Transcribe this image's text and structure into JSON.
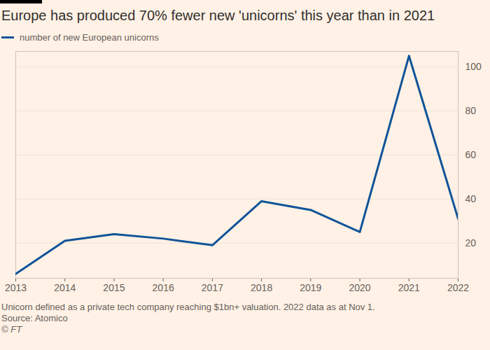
{
  "chart_data": {
    "type": "line",
    "title": "Europe has produced 70% fewer new 'unicorns' this year than in 2021",
    "x": [
      2013,
      2014,
      2015,
      2016,
      2017,
      2018,
      2019,
      2020,
      2021,
      2022
    ],
    "series": [
      {
        "name": "number of new European unicorns",
        "color": "#0f5499",
        "values": [
          6,
          21,
          24,
          22,
          19,
          39,
          35,
          25,
          105,
          31
        ]
      }
    ],
    "xlim": [
      2013,
      2022
    ],
    "xticks": [
      2013,
      2014,
      2015,
      2016,
      2017,
      2018,
      2019,
      2020,
      2021,
      2022
    ],
    "ylim": [
      4,
      107
    ],
    "yticks": [
      20,
      40,
      60,
      80,
      100
    ],
    "grid": true,
    "notes": [
      "Unicorn defined as a private tech company reaching $1bn+ valuation. 2022 data as at Nov 1."
    ],
    "source": "Source: Atomico",
    "credit": "© FT"
  }
}
